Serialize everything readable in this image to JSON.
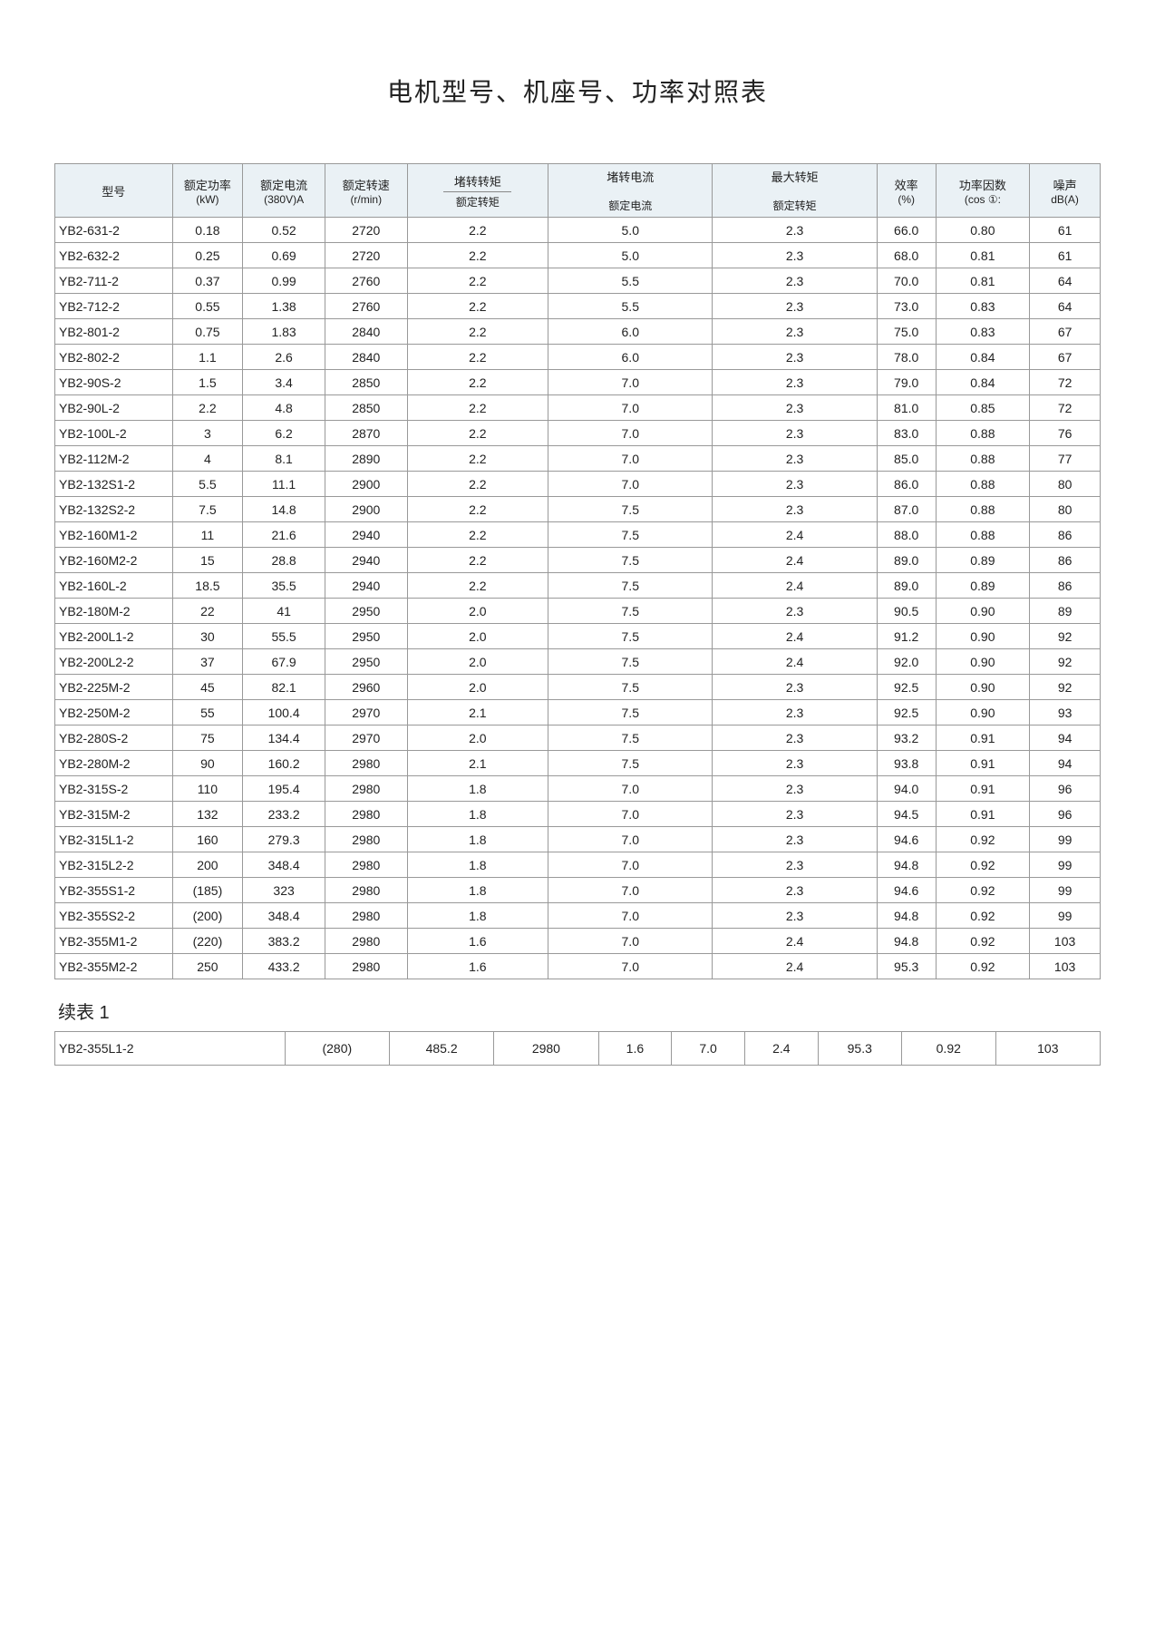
{
  "title": "电机型号、机座号、功率对照表",
  "continued_label": "续表 1",
  "table": {
    "type": "table",
    "background_color": "#ffffff",
    "header_bg": "#eaf1f5",
    "border_color": "#999999",
    "text_color": "#222222",
    "font_size_body": 14,
    "font_size_header": 13,
    "columns": [
      {
        "key": "model",
        "label": "型号",
        "sub": "",
        "width_pct": 10,
        "align": "left"
      },
      {
        "key": "kw",
        "label": "额定功率",
        "sub": "(kW)",
        "width_pct": 6,
        "align": "center"
      },
      {
        "key": "amp",
        "label": "额定电流",
        "sub": "(380V)A",
        "width_pct": 7,
        "align": "center"
      },
      {
        "key": "rpm",
        "label": "额定转速",
        "sub": "(r/min)",
        "width_pct": 7,
        "align": "center"
      },
      {
        "key": "tr",
        "label": "堵转转矩",
        "sub": "额定转矩",
        "width_pct": 12,
        "align": "center",
        "ratio_divider": true
      },
      {
        "key": "ir",
        "label": "堵转电流",
        "sub": "额定电流",
        "width_pct": 14,
        "align": "center",
        "ratio_divider": true
      },
      {
        "key": "mtr",
        "label": "最大转矩",
        "sub": "额定转矩",
        "width_pct": 14,
        "align": "center",
        "ratio_divider": true
      },
      {
        "key": "eff",
        "label": "效率",
        "sub": "(%)",
        "width_pct": 5,
        "align": "center"
      },
      {
        "key": "pf",
        "label": "功率因数",
        "sub": "(cos ①:",
        "width_pct": 8,
        "align": "center"
      },
      {
        "key": "db",
        "label": "噪声",
        "sub": "dB(A)",
        "width_pct": 6,
        "align": "center"
      }
    ],
    "rows": [
      [
        "YB2-631-2",
        "0.18",
        "0.52",
        "2720",
        "2.2",
        "5.0",
        "2.3",
        "66.0",
        "0.80",
        "61"
      ],
      [
        "YB2-632-2",
        "0.25",
        "0.69",
        "2720",
        "2.2",
        "5.0",
        "2.3",
        "68.0",
        "0.81",
        "61"
      ],
      [
        "YB2-711-2",
        "0.37",
        "0.99",
        "2760",
        "2.2",
        "5.5",
        "2.3",
        "70.0",
        "0.81",
        "64"
      ],
      [
        "YB2-712-2",
        "0.55",
        "1.38",
        "2760",
        "2.2",
        "5.5",
        "2.3",
        "73.0",
        "0.83",
        "64"
      ],
      [
        "YB2-801-2",
        "0.75",
        "1.83",
        "2840",
        "2.2",
        "6.0",
        "2.3",
        "75.0",
        "0.83",
        "67"
      ],
      [
        "YB2-802-2",
        "1.1",
        "2.6",
        "2840",
        "2.2",
        "6.0",
        "2.3",
        "78.0",
        "0.84",
        "67"
      ],
      [
        "YB2-90S-2",
        "1.5",
        "3.4",
        "2850",
        "2.2",
        "7.0",
        "2.3",
        "79.0",
        "0.84",
        "72"
      ],
      [
        "YB2-90L-2",
        "2.2",
        "4.8",
        "2850",
        "2.2",
        "7.0",
        "2.3",
        "81.0",
        "0.85",
        "72"
      ],
      [
        "YB2-100L-2",
        "3",
        "6.2",
        "2870",
        "2.2",
        "7.0",
        "2.3",
        "83.0",
        "0.88",
        "76"
      ],
      [
        "YB2-112M-2",
        "4",
        "8.1",
        "2890",
        "2.2",
        "7.0",
        "2.3",
        "85.0",
        "0.88",
        "77"
      ],
      [
        "YB2-132S1-2",
        "5.5",
        "11.1",
        "2900",
        "2.2",
        "7.0",
        "2.3",
        "86.0",
        "0.88",
        "80"
      ],
      [
        "YB2-132S2-2",
        "7.5",
        "14.8",
        "2900",
        "2.2",
        "7.5",
        "2.3",
        "87.0",
        "0.88",
        "80"
      ],
      [
        "YB2-160M1-2",
        "11",
        "21.6",
        "2940",
        "2.2",
        "7.5",
        "2.4",
        "88.0",
        "0.88",
        "86"
      ],
      [
        "YB2-160M2-2",
        "15",
        "28.8",
        "2940",
        "2.2",
        "7.5",
        "2.4",
        "89.0",
        "0.89",
        "86"
      ],
      [
        "YB2-160L-2",
        "18.5",
        "35.5",
        "2940",
        "2.2",
        "7.5",
        "2.4",
        "89.0",
        "0.89",
        "86"
      ],
      [
        "YB2-180M-2",
        "22",
        "41",
        "2950",
        "2.0",
        "7.5",
        "2.3",
        "90.5",
        "0.90",
        "89"
      ],
      [
        "YB2-200L1-2",
        "30",
        "55.5",
        "2950",
        "2.0",
        "7.5",
        "2.4",
        "91.2",
        "0.90",
        "92"
      ],
      [
        "YB2-200L2-2",
        "37",
        "67.9",
        "2950",
        "2.0",
        "7.5",
        "2.4",
        "92.0",
        "0.90",
        "92"
      ],
      [
        "YB2-225M-2",
        "45",
        "82.1",
        "2960",
        "2.0",
        "7.5",
        "2.3",
        "92.5",
        "0.90",
        "92"
      ],
      [
        "YB2-250M-2",
        "55",
        "100.4",
        "2970",
        "2.1",
        "7.5",
        "2.3",
        "92.5",
        "0.90",
        "93"
      ],
      [
        "YB2-280S-2",
        "75",
        "134.4",
        "2970",
        "2.0",
        "7.5",
        "2.3",
        "93.2",
        "0.91",
        "94"
      ],
      [
        "YB2-280M-2",
        "90",
        "160.2",
        "2980",
        "2.1",
        "7.5",
        "2.3",
        "93.8",
        "0.91",
        "94"
      ],
      [
        "YB2-315S-2",
        "110",
        "195.4",
        "2980",
        "1.8",
        "7.0",
        "2.3",
        "94.0",
        "0.91",
        "96"
      ],
      [
        "YB2-315M-2",
        "132",
        "233.2",
        "2980",
        "1.8",
        "7.0",
        "2.3",
        "94.5",
        "0.91",
        "96"
      ],
      [
        "YB2-315L1-2",
        "160",
        "279.3",
        "2980",
        "1.8",
        "7.0",
        "2.3",
        "94.6",
        "0.92",
        "99"
      ],
      [
        "YB2-315L2-2",
        "200",
        "348.4",
        "2980",
        "1.8",
        "7.0",
        "2.3",
        "94.8",
        "0.92",
        "99"
      ],
      [
        "YB2-355S1-2",
        "(185)",
        "323",
        "2980",
        "1.8",
        "7.0",
        "2.3",
        "94.6",
        "0.92",
        "99"
      ],
      [
        "YB2-355S2-2",
        "(200)",
        "348.4",
        "2980",
        "1.8",
        "7.0",
        "2.3",
        "94.8",
        "0.92",
        "99"
      ],
      [
        "YB2-355M1-2",
        "(220)",
        "383.2",
        "2980",
        "1.6",
        "7.0",
        "2.4",
        "94.8",
        "0.92",
        "103"
      ],
      [
        "YB2-355M2-2",
        "250",
        "433.2",
        "2980",
        "1.6",
        "7.0",
        "2.4",
        "95.3",
        "0.92",
        "103"
      ]
    ]
  },
  "continued_table": {
    "type": "table",
    "rows": [
      [
        "YB2-355L1-2",
        "(280)",
        "485.2",
        "2980",
        "1.6",
        "7.0",
        "2.4",
        "95.3",
        "0.92",
        "103"
      ]
    ]
  }
}
